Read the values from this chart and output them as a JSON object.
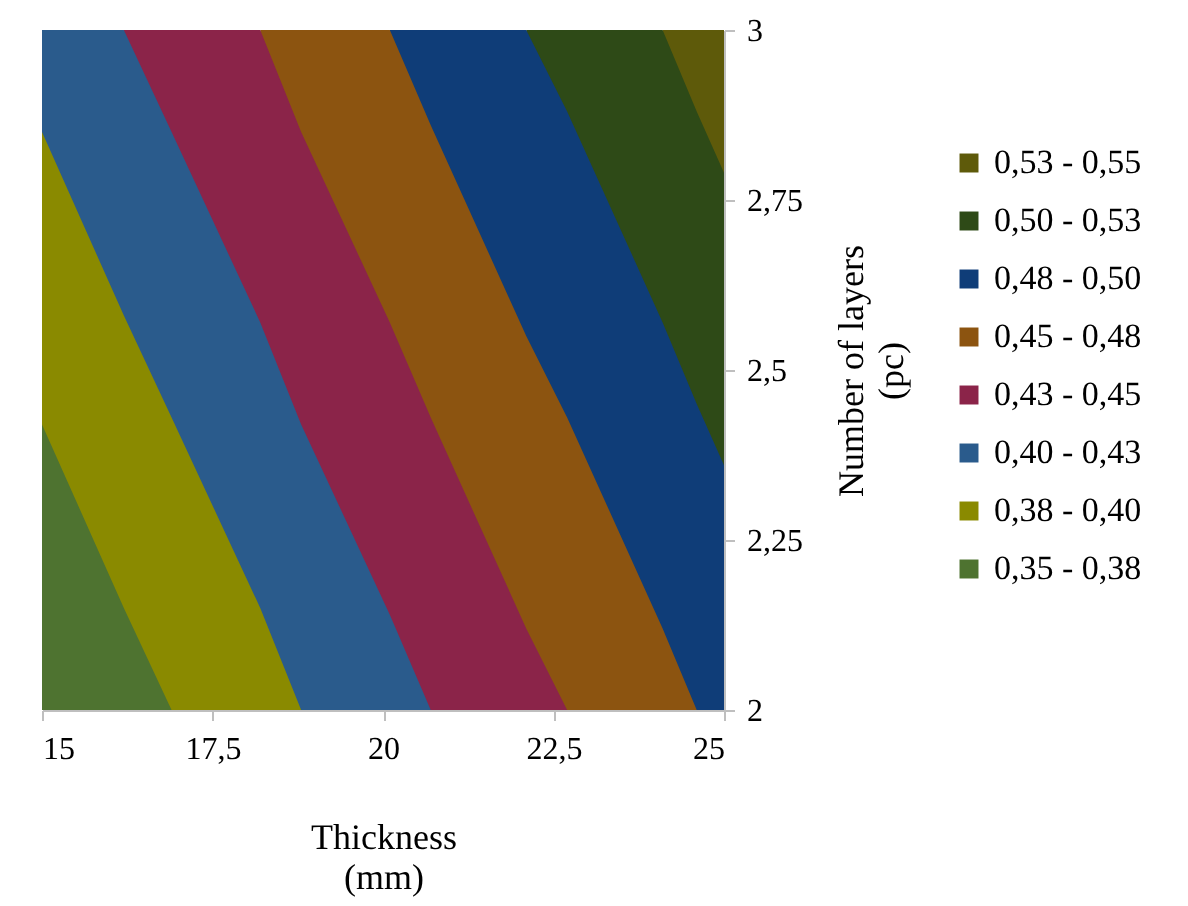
{
  "chart_data": {
    "type": "area",
    "xlabel": "Thickness\n(mm)",
    "ylabel": "Number of layers\n(pc)",
    "x": [
      15,
      16.2,
      16.9,
      18.2,
      18.8,
      20.1,
      20.7,
      22.1,
      22.7,
      24.1,
      24.6,
      25
    ],
    "series": [
      {
        "name": "0,35 - 0,38",
        "color": "#4e7330",
        "values": [
          2.42,
          2.15,
          2,
          2,
          2,
          2,
          2,
          2,
          2,
          2,
          2,
          2
        ]
      },
      {
        "name": "0,38 - 0,40",
        "color": "#8a8a00",
        "values": [
          2.85,
          2.58,
          2.43,
          2.15,
          2,
          2,
          2,
          2,
          2,
          2,
          2,
          2
        ]
      },
      {
        "name": "0,40 - 0,43",
        "color": "#2a5b8c",
        "values": [
          3,
          3,
          2.85,
          2.57,
          2.42,
          2.14,
          2,
          2,
          2,
          2,
          2,
          2
        ]
      },
      {
        "name": "0,43 - 0,45",
        "color": "#8b2449",
        "values": [
          null,
          3,
          3,
          3,
          2.85,
          2.57,
          2.43,
          2.12,
          2,
          2,
          2,
          2
        ]
      },
      {
        "name": "0,45 - 0,48",
        "color": "#8c5410",
        "values": [
          null,
          null,
          null,
          3,
          3,
          3,
          2.86,
          2.55,
          2.43,
          2.12,
          2,
          2
        ]
      },
      {
        "name": "0,48 - 0,50",
        "color": "#0f3d78",
        "values": [
          null,
          null,
          null,
          null,
          null,
          3,
          3,
          3,
          2.88,
          2.57,
          2.45,
          2.36
        ]
      },
      {
        "name": "0,50 - 0,53",
        "color": "#2e4a17",
        "values": [
          null,
          null,
          null,
          null,
          null,
          null,
          null,
          3,
          3,
          3,
          2.88,
          2.79
        ]
      },
      {
        "name": "0,53 - 0,55",
        "color": "#5e5a0a",
        "values": [
          null,
          null,
          null,
          null,
          null,
          null,
          null,
          null,
          null,
          3,
          3,
          3
        ]
      }
    ],
    "xlim": [
      15,
      25
    ],
    "xticks": [
      15,
      {
        "value": 17.5,
        "label": "17,5"
      },
      20,
      {
        "value": 22.5,
        "label": "22,5"
      },
      25
    ],
    "ylim": [
      2,
      3
    ],
    "yticks": [
      2,
      {
        "value": 2.25,
        "label": "2,25"
      },
      {
        "value": 2.5,
        "label": "2,5"
      },
      {
        "value": 2.75,
        "label": "2,75"
      },
      3
    ],
    "legend": "right"
  }
}
